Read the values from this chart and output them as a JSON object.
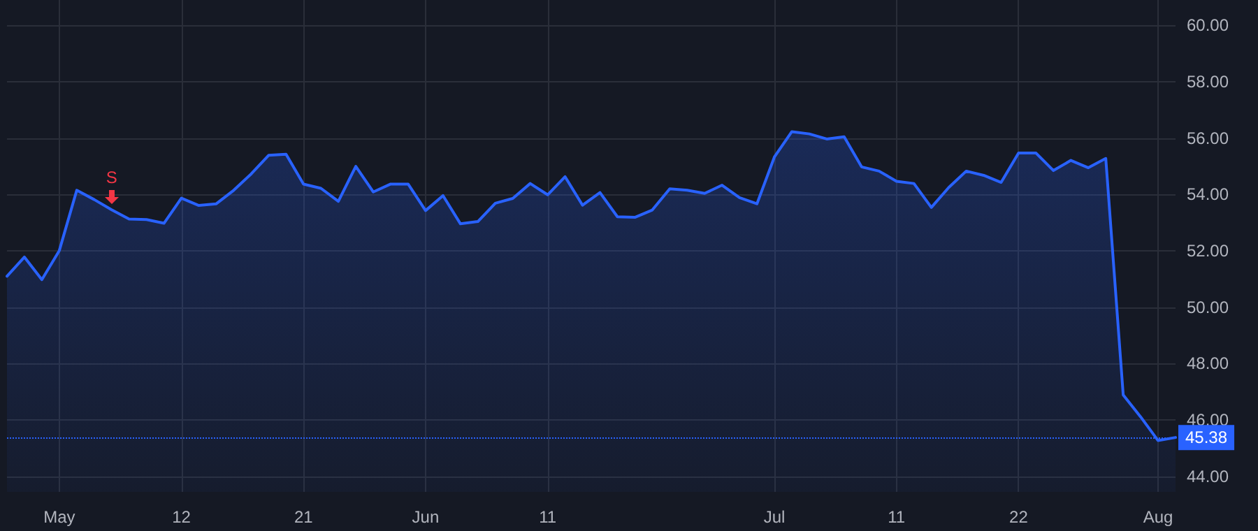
{
  "chart_data": {
    "type": "area",
    "categories": [
      null,
      null,
      null,
      "May",
      null,
      null,
      null,
      null,
      null,
      null,
      "12",
      null,
      null,
      null,
      null,
      null,
      null,
      "21",
      null,
      null,
      null,
      null,
      null,
      null,
      "Jun",
      null,
      null,
      null,
      null,
      null,
      null,
      "11",
      null,
      null,
      null,
      null,
      null,
      null,
      null,
      null,
      null,
      null,
      null,
      null,
      "Jul",
      null,
      null,
      null,
      null,
      null,
      null,
      "11",
      null,
      null,
      null,
      null,
      null,
      null,
      "22",
      null,
      null,
      null,
      null,
      null,
      null,
      null,
      "Aug",
      null
    ],
    "series": [
      {
        "color": "#2962ff",
        "values": [
          51.1,
          51.78,
          50.98,
          52.01,
          54.15,
          53.82,
          53.46,
          53.13,
          53.11,
          52.98,
          53.87,
          53.61,
          53.67,
          54.15,
          54.73,
          55.39,
          55.43,
          54.37,
          54.22,
          53.76,
          55.0,
          54.09,
          54.37,
          54.37,
          53.43,
          53.96,
          52.96,
          53.04,
          53.69,
          53.86,
          54.39,
          53.99,
          54.63,
          53.62,
          54.07,
          53.21,
          53.19,
          53.45,
          54.2,
          54.15,
          54.04,
          54.33,
          53.89,
          53.67,
          55.33,
          56.23,
          56.15,
          55.97,
          56.05,
          54.98,
          54.83,
          54.47,
          54.39,
          53.54,
          54.25,
          54.83,
          54.68,
          54.43,
          55.47,
          55.47,
          54.85,
          55.21,
          54.95,
          55.28,
          46.89,
          46.11,
          45.27,
          45.38
        ]
      }
    ],
    "ylim": [
      43.45,
      60.9
    ],
    "yticks": [
      {
        "value": 44,
        "label": "44.00"
      },
      {
        "value": 46,
        "label": "46.00"
      },
      {
        "value": 48,
        "label": "48.00"
      },
      {
        "value": 50,
        "label": "50.00"
      },
      {
        "value": 52,
        "label": "52.00"
      },
      {
        "value": 54,
        "label": "54.00"
      },
      {
        "value": 56,
        "label": "56.00"
      },
      {
        "value": 58,
        "label": "58.00"
      },
      {
        "value": 60,
        "label": "60.00"
      }
    ],
    "ref_lines": [
      {
        "axis": "y",
        "value": 45.38,
        "label": "45.38",
        "color": "#2962ff",
        "line_style": "dotted"
      }
    ],
    "annotations": [
      {
        "text": "S",
        "y": 53.46
      }
    ],
    "grid": true,
    "marker": "none",
    "line_style": "solid"
  }
}
